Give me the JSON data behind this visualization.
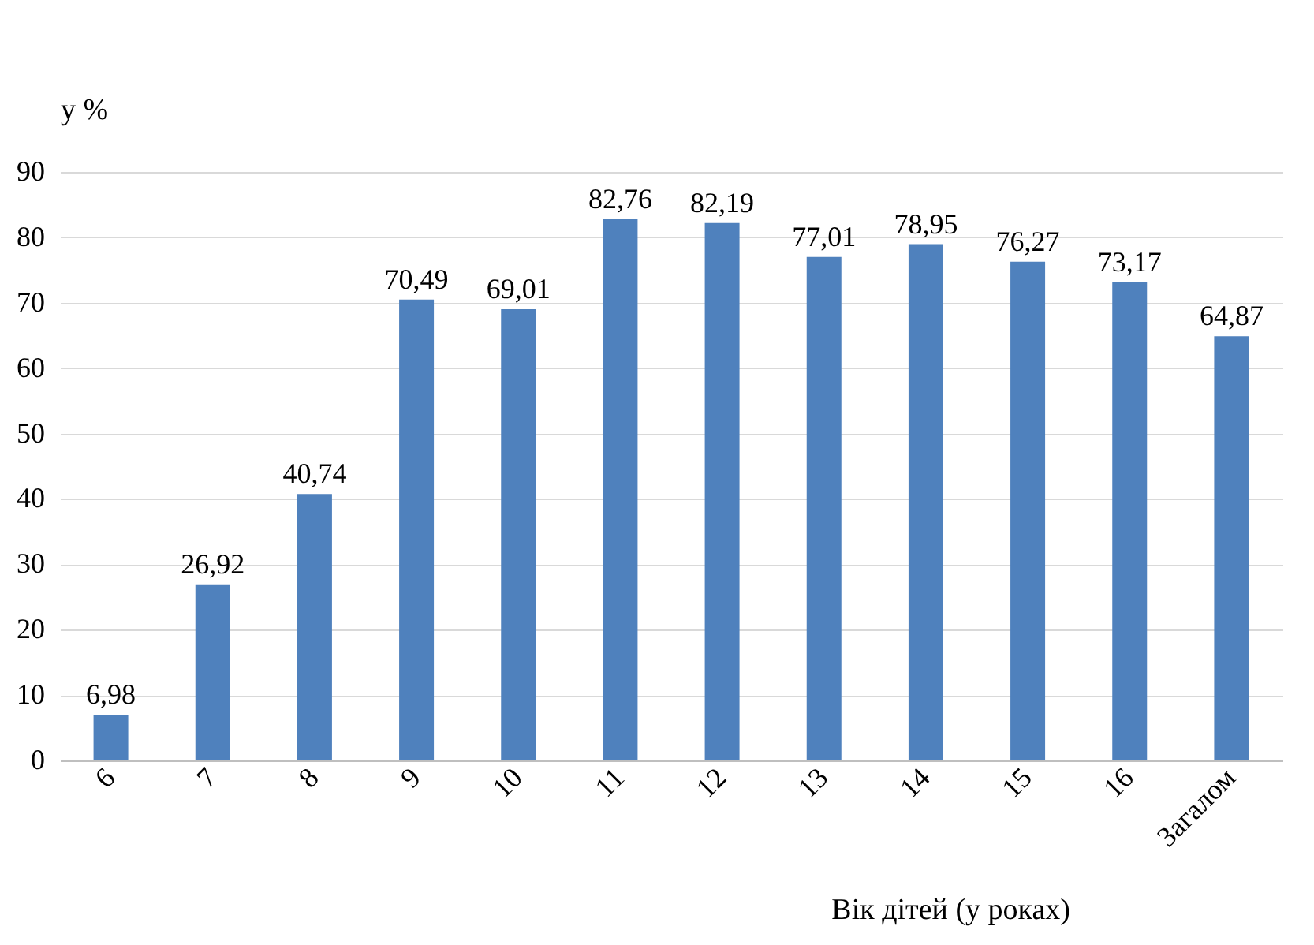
{
  "chart_data": {
    "type": "bar",
    "xlabel": "Вік дітей (у роках)",
    "ylabel": "у %",
    "categories": [
      "6",
      "7",
      "8",
      "9",
      "10",
      "11",
      "12",
      "13",
      "14",
      "15",
      "16",
      "Загалом"
    ],
    "values": [
      6.98,
      26.92,
      40.74,
      70.49,
      69.01,
      82.76,
      82.19,
      77.01,
      78.95,
      76.27,
      73.17,
      64.87
    ],
    "value_labels": [
      "6,98",
      "26,92",
      "40,74",
      "70,49",
      "69,01",
      "82,76",
      "82,19",
      "77,01",
      "78,95",
      "76,27",
      "73,17",
      "64,87"
    ],
    "color": "#4f81bd",
    "ylim": [
      0,
      90
    ],
    "yticks": [
      0,
      10,
      20,
      30,
      40,
      50,
      60,
      70,
      80,
      90
    ],
    "grid": "y"
  }
}
